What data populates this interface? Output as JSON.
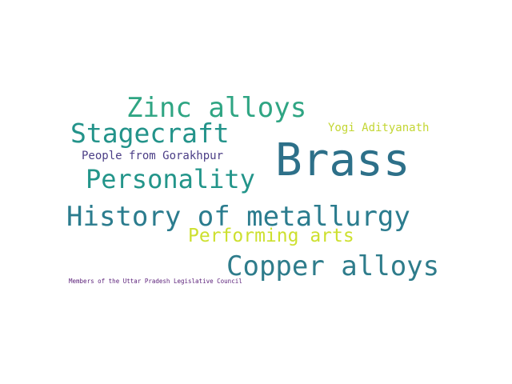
{
  "words": [
    {
      "text": "Brass",
      "color": "#2d7089"
    },
    {
      "text": "Zinc alloys",
      "color": "#2fa583"
    },
    {
      "text": "Stagecraft",
      "color": "#23938a"
    },
    {
      "text": "Yogi Adityanath",
      "color": "#c3d633"
    },
    {
      "text": "People from Gorakhpur",
      "color": "#4b3e86"
    },
    {
      "text": "Personality",
      "color": "#23958a"
    },
    {
      "text": "History of metallurgy",
      "color": "#2b7c8e"
    },
    {
      "text": "Performing arts",
      "color": "#cde02f"
    },
    {
      "text": "Copper alloys",
      "color": "#2e7c8b"
    },
    {
      "text": "Members of the Uttar Pradesh Legislative Council",
      "color": "#5a1f79"
    }
  ]
}
